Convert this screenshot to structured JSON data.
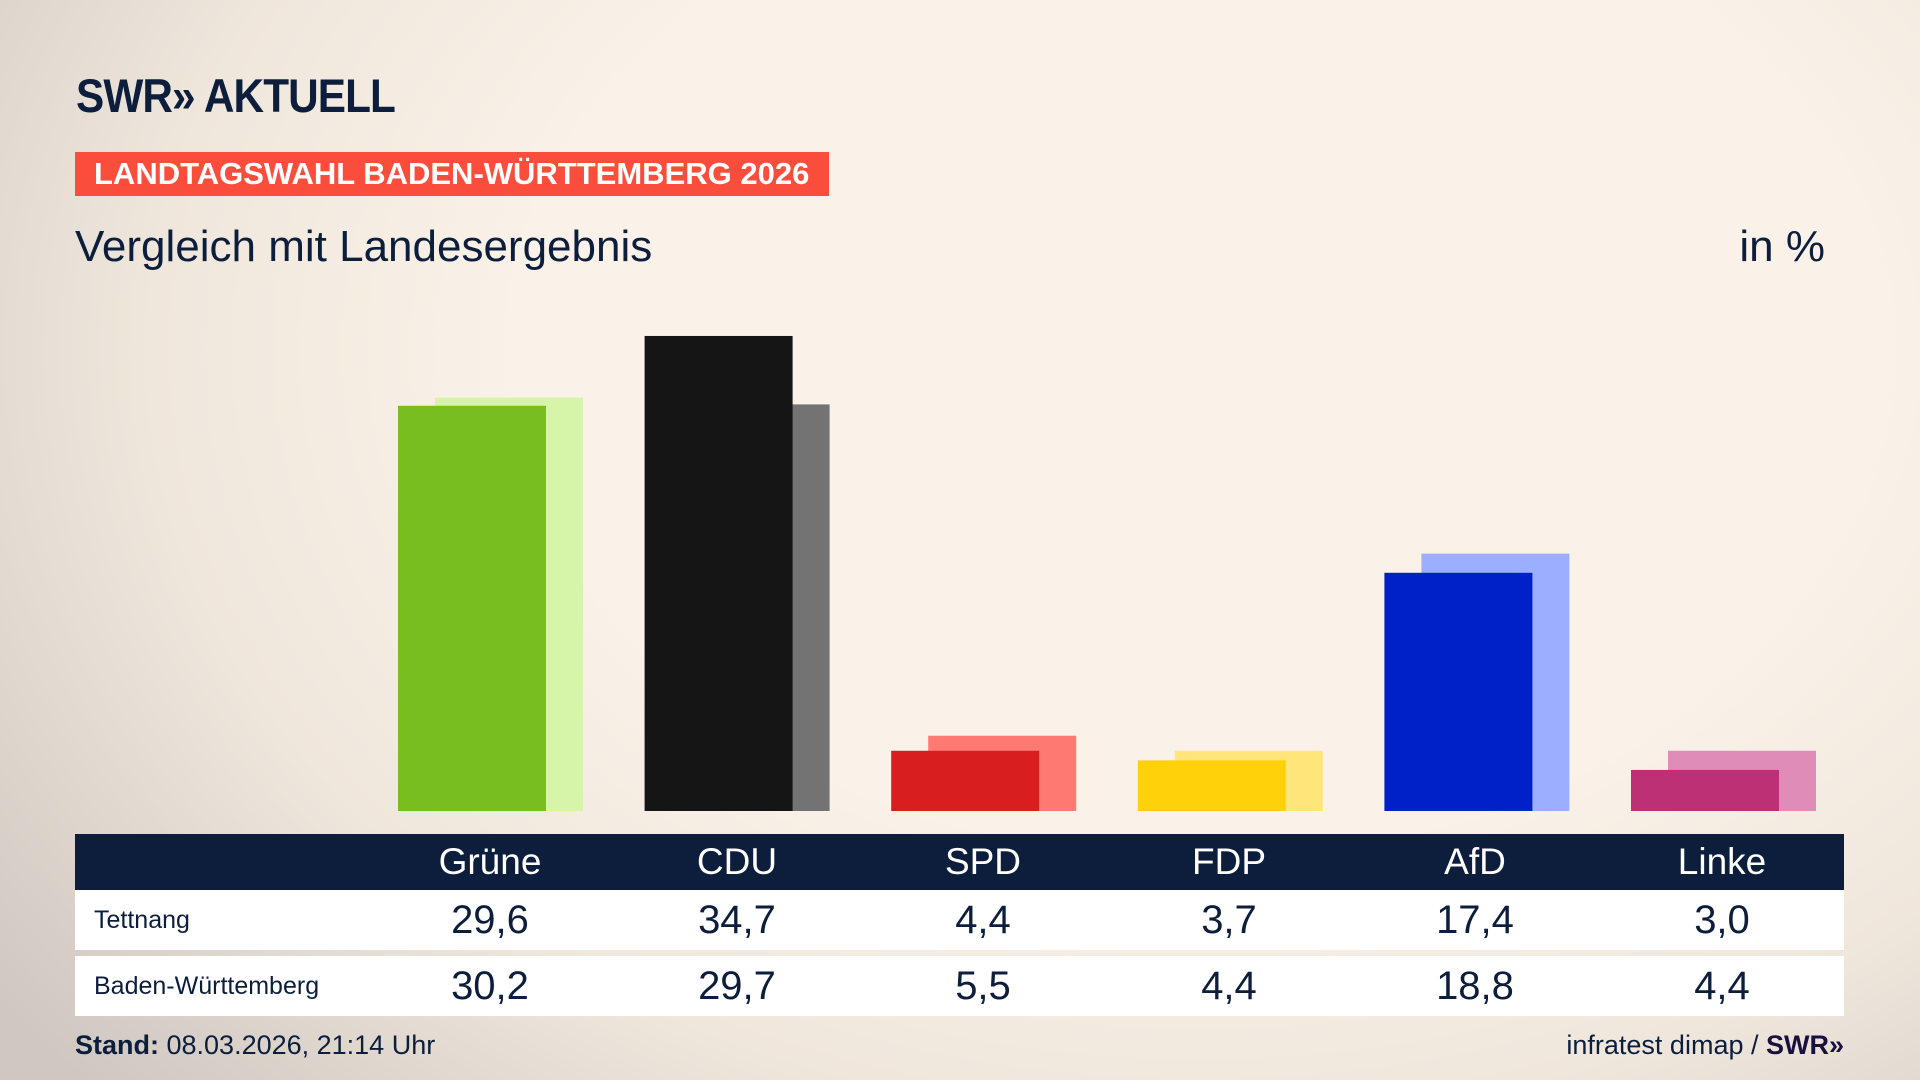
{
  "header": {
    "logo": "SWR» AKTUELL",
    "banner": "LANDTAGSWAHL BADEN-WÜRTTEMBERG 2026",
    "subtitle": "Vergleich mit Landesergebnis",
    "unit": "in %"
  },
  "chart_data": {
    "type": "bar",
    "categories": [
      "Grüne",
      "CDU",
      "SPD",
      "FDP",
      "AfD",
      "Linke"
    ],
    "series": [
      {
        "name": "Tettnang",
        "values": [
          29.6,
          34.7,
          4.4,
          3.7,
          17.4,
          3.0
        ],
        "colors": [
          "#78be1e",
          "#151515",
          "#d81e1e",
          "#ffd10a",
          "#0021c8",
          "#be3075"
        ]
      },
      {
        "name": "Baden-Württemberg",
        "values": [
          30.2,
          29.7,
          5.5,
          4.4,
          18.8,
          4.4
        ],
        "colors": [
          "#d6f5a8",
          "#737373",
          "#ff7a73",
          "#ffe57a",
          "#9caeff",
          "#df8cb9"
        ]
      }
    ],
    "ylim": [
      0,
      35
    ],
    "grid": false
  },
  "table": {
    "headers": [
      "Grüne",
      "CDU",
      "SPD",
      "FDP",
      "AfD",
      "Linke"
    ],
    "rows": [
      {
        "label": "Tettnang",
        "values": [
          "29,6",
          "34,7",
          "4,4",
          "3,7",
          "17,4",
          "3,0"
        ]
      },
      {
        "label": "Baden-Württemberg",
        "values": [
          "30,2",
          "29,7",
          "5,5",
          "4,4",
          "18,8",
          "4,4"
        ]
      }
    ]
  },
  "footer": {
    "stand_label": "Stand:",
    "stand_value": " 08.03.2026, 21:14 Uhr",
    "source": "infratest dimap / ",
    "source_logo": "SWR»"
  },
  "colors": {
    "navy": "#0c1e3c",
    "banner": "#fa4d3c"
  }
}
